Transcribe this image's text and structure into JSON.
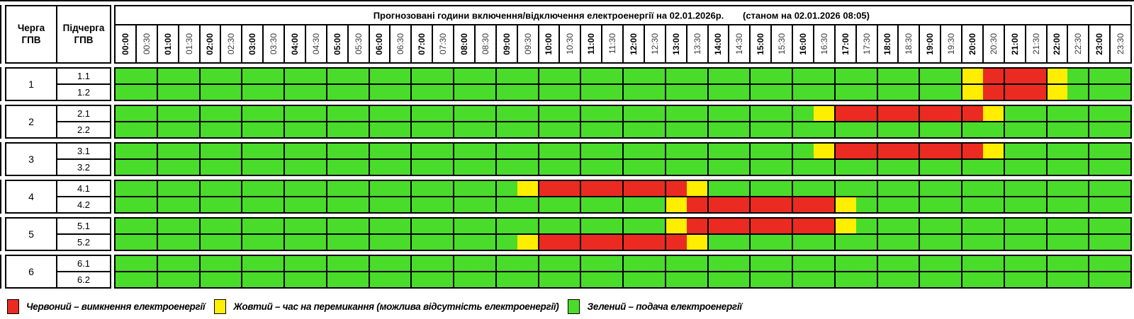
{
  "header": {
    "col1": "Черга ГПВ",
    "col2": "Підчерга ГПВ",
    "title": "Прогнозовані години включення/відключення електроенергії на 02.01.2026р.",
    "status": "(станом на 02.01.2026 08:05)"
  },
  "times": [
    "00:00",
    "00:30",
    "01:00",
    "01:30",
    "02:00",
    "02:30",
    "03:00",
    "03:30",
    "04:00",
    "04:30",
    "05:00",
    "05:30",
    "06:00",
    "06:30",
    "07:00",
    "07:30",
    "08:00",
    "08:30",
    "09:00",
    "09:30",
    "10:00",
    "10:30",
    "11:00",
    "11:30",
    "12:00",
    "12:30",
    "13:00",
    "13:30",
    "14:00",
    "14:30",
    "15:00",
    "15:30",
    "16:00",
    "16:30",
    "17:00",
    "17:30",
    "18:00",
    "18:30",
    "19:00",
    "19:30",
    "20:00",
    "20:30",
    "21:00",
    "21:30",
    "22:00",
    "22:30",
    "23:00",
    "23:30"
  ],
  "colors": {
    "G": "#4ADC2A",
    "Y": "#FFEE00",
    "R": "#EB2B22",
    "half_hour_label": "#3b3b3b",
    "border": "#000000"
  },
  "queues": [
    {
      "queue": "1",
      "subs": [
        {
          "label": "1.1",
          "slots": "GGGGGGGGGGGGGGGGGGGGGGGGGGGGGGGGGGGGGGGGYRRRYGGG"
        },
        {
          "label": "1.2",
          "slots": "GGGGGGGGGGGGGGGGGGGGGGGGGGGGGGGGGGGGGGGGYRRRYGGG"
        }
      ]
    },
    {
      "queue": "2",
      "subs": [
        {
          "label": "2.1",
          "slots": "GGGGGGGGGGGGGGGGGGGGGGGGGGGGGGGGGYRRRRRRRYGGGGGG"
        },
        {
          "label": "2.2",
          "slots": "GGGGGGGGGGGGGGGGGGGGGGGGGGGGGGGGGGGGGGGGGGGGGGGG"
        }
      ]
    },
    {
      "queue": "3",
      "subs": [
        {
          "label": "3.1",
          "slots": "GGGGGGGGGGGGGGGGGGGGGGGGGGGGGGGGGYRRRRRRRYGGGGGG"
        },
        {
          "label": "3.2",
          "slots": "GGGGGGGGGGGGGGGGGGGGGGGGGGGGGGGGGGGGGGGGGGGGGGGG"
        }
      ]
    },
    {
      "queue": "4",
      "subs": [
        {
          "label": "4.1",
          "slots": "GGGGGGGGGGGGGGGGGGGYRRRRRRRYGGGGGGGGGGGGGGGGGGGG"
        },
        {
          "label": "4.2",
          "slots": "GGGGGGGGGGGGGGGGGGGGGGGGGGYRRRRRRRYGGGGGGGGGGGGG"
        }
      ]
    },
    {
      "queue": "5",
      "subs": [
        {
          "label": "5.1",
          "slots": "GGGGGGGGGGGGGGGGGGGGGGGGGGYRRRRRRRYGGGGGGGGGGGGG"
        },
        {
          "label": "5.2",
          "slots": "GGGGGGGGGGGGGGGGGGGYRRRRRRRYGGGGGGGGGGGGGGGGGGGG"
        }
      ]
    },
    {
      "queue": "6",
      "subs": [
        {
          "label": "6.1",
          "slots": "GGGGGGGGGGGGGGGGGGGGGGGGGGGGGGGGGGGGGGGGGGGGGGGG"
        },
        {
          "label": "6.2",
          "slots": "GGGGGGGGGGGGGGGGGGGGGGGGGGGGGGGGGGGGGGGGGGGGGGGG"
        }
      ]
    }
  ],
  "legend": [
    {
      "key": "R",
      "label": "Червоний – вимкнення електроенергії"
    },
    {
      "key": "Y",
      "label": "Жовтий – час на перемикання (можлива відсутність електроенергії)"
    },
    {
      "key": "G",
      "label": "Зелений – подача електроенергії"
    }
  ],
  "chart_data": {
    "type": "heatmap",
    "title": "Прогнозовані години включення/відключення електроенергії на 02.01.2026р.",
    "subtitle": "(станом на 02.01.2026 08:05)",
    "x_categories": "times (48 half-hour slots 00:00–23:30)",
    "state_codes": {
      "G": "подача електроенергії",
      "Y": "час на перемикання",
      "R": "вимкнення електроенергії"
    },
    "rows": [
      {
        "row": "1.1",
        "slots": "GGGGGGGGGGGGGGGGGGGGGGGGGGGGGGGGGGGGGGGGYRRRYGGG"
      },
      {
        "row": "1.2",
        "slots": "GGGGGGGGGGGGGGGGGGGGGGGGGGGGGGGGGGGGGGGGYRRRYGGG"
      },
      {
        "row": "2.1",
        "slots": "GGGGGGGGGGGGGGGGGGGGGGGGGGGGGGGGGYRRRRRRRYGGGGGG"
      },
      {
        "row": "2.2",
        "slots": "GGGGGGGGGGGGGGGGGGGGGGGGGGGGGGGGGGGGGGGGGGGGGGGG"
      },
      {
        "row": "3.1",
        "slots": "GGGGGGGGGGGGGGGGGGGGGGGGGGGGGGGGGYRRRRRRRYGGGGGG"
      },
      {
        "row": "3.2",
        "slots": "GGGGGGGGGGGGGGGGGGGGGGGGGGGGGGGGGGGGGGGGGGGGGGGG"
      },
      {
        "row": "4.1",
        "slots": "GGGGGGGGGGGGGGGGGGGYRRRRRRRYGGGGGGGGGGGGGGGGGGGG"
      },
      {
        "row": "4.2",
        "slots": "GGGGGGGGGGGGGGGGGGGGGGGGGGYRRRRRRRYGGGGGGGGGGGGG"
      },
      {
        "row": "5.1",
        "slots": "GGGGGGGGGGGGGGGGGGGGGGGGGGYRRRRRRRYGGGGGGGGGGGGG"
      },
      {
        "row": "5.2",
        "slots": "GGGGGGGGGGGGGGGGGGGYRRRRRRRYGGGGGGGGGGGGGGGGGGGG"
      },
      {
        "row": "6.1",
        "slots": "GGGGGGGGGGGGGGGGGGGGGGGGGGGGGGGGGGGGGGGGGGGGGGGG"
      },
      {
        "row": "6.2",
        "slots": "GGGGGGGGGGGGGGGGGGGGGGGGGGGGGGGGGGGGGGGGGGGGGGGG"
      }
    ]
  }
}
